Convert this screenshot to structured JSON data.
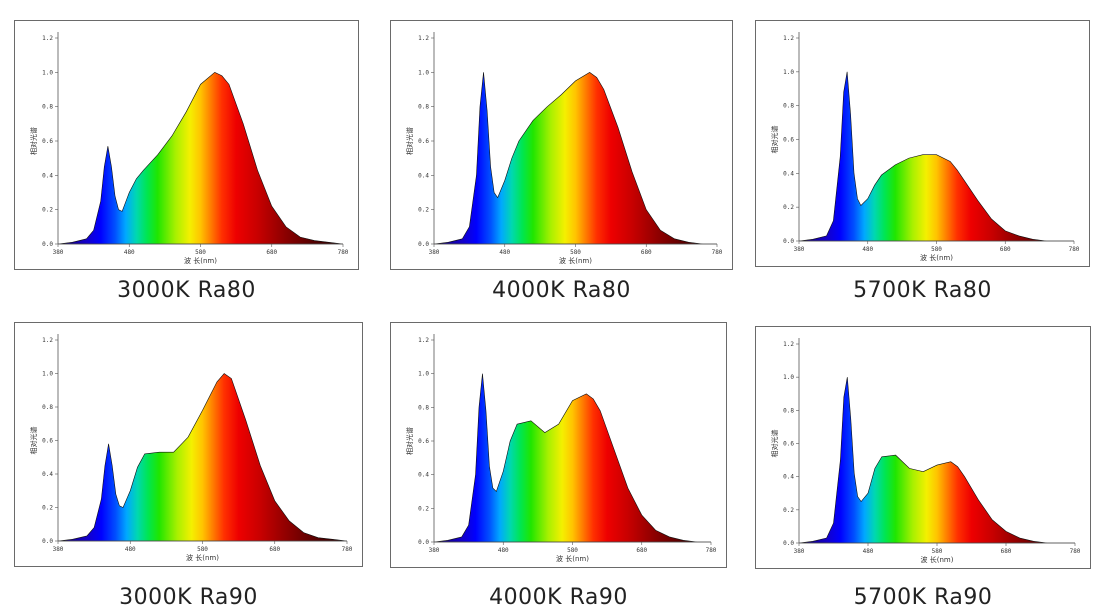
{
  "chart_data": [
    {
      "type": "area",
      "caption": "3000K Ra80",
      "xlabel": "波 长(nm)",
      "ylabel": "相对光谱",
      "xlim": [
        380,
        780
      ],
      "ylim": [
        0,
        1.2
      ],
      "xticks": [
        "380",
        "480",
        "580",
        "680",
        "780"
      ],
      "yticks": [
        "0.0",
        "0.2",
        "0.4",
        "0.6",
        "0.8",
        "1.0",
        "1.2"
      ],
      "x": [
        380,
        400,
        420,
        430,
        440,
        445,
        450,
        455,
        460,
        465,
        470,
        480,
        490,
        500,
        520,
        540,
        560,
        580,
        600,
        610,
        620,
        640,
        660,
        680,
        700,
        720,
        740,
        760,
        780
      ],
      "y": [
        0.0,
        0.01,
        0.03,
        0.08,
        0.25,
        0.45,
        0.57,
        0.45,
        0.28,
        0.2,
        0.19,
        0.3,
        0.38,
        0.43,
        0.52,
        0.63,
        0.77,
        0.93,
        1.0,
        0.98,
        0.93,
        0.7,
        0.43,
        0.22,
        0.1,
        0.04,
        0.02,
        0.01,
        0.0
      ]
    },
    {
      "type": "area",
      "caption": "4000K Ra80",
      "xlabel": "波 长(nm)",
      "ylabel": "相对光谱",
      "xlim": [
        380,
        780
      ],
      "ylim": [
        0,
        1.2
      ],
      "xticks": [
        "380",
        "480",
        "580",
        "680",
        "780"
      ],
      "yticks": [
        "0.0",
        "0.2",
        "0.4",
        "0.6",
        "0.8",
        "1.0",
        "1.2"
      ],
      "x": [
        380,
        400,
        420,
        430,
        440,
        445,
        450,
        455,
        460,
        465,
        470,
        480,
        490,
        500,
        520,
        540,
        560,
        580,
        600,
        610,
        620,
        640,
        660,
        680,
        700,
        720,
        740,
        760,
        780
      ],
      "y": [
        0.0,
        0.01,
        0.03,
        0.1,
        0.4,
        0.8,
        1.0,
        0.78,
        0.45,
        0.3,
        0.27,
        0.37,
        0.5,
        0.6,
        0.72,
        0.8,
        0.87,
        0.95,
        1.0,
        0.97,
        0.9,
        0.68,
        0.42,
        0.2,
        0.08,
        0.03,
        0.01,
        0.0,
        0.0
      ]
    },
    {
      "type": "area",
      "caption": "5700K Ra80",
      "xlabel": "波 长(nm)",
      "ylabel": "相对光谱",
      "xlim": [
        380,
        780
      ],
      "ylim": [
        0,
        1.2
      ],
      "xticks": [
        "380",
        "480",
        "580",
        "680",
        "780"
      ],
      "yticks": [
        "0.0",
        "0.2",
        "0.4",
        "0.6",
        "0.8",
        "1.0",
        "1.2"
      ],
      "x": [
        380,
        400,
        420,
        430,
        440,
        445,
        450,
        455,
        460,
        465,
        470,
        480,
        490,
        500,
        520,
        540,
        560,
        580,
        600,
        610,
        620,
        640,
        660,
        680,
        700,
        720,
        740,
        760,
        780
      ],
      "y": [
        0.0,
        0.01,
        0.03,
        0.12,
        0.5,
        0.88,
        1.0,
        0.75,
        0.4,
        0.25,
        0.21,
        0.25,
        0.33,
        0.39,
        0.45,
        0.49,
        0.51,
        0.51,
        0.47,
        0.42,
        0.36,
        0.24,
        0.13,
        0.06,
        0.03,
        0.01,
        0.0,
        0.0,
        0.0
      ]
    },
    {
      "type": "area",
      "caption": "3000K Ra90",
      "xlabel": "波 长(nm)",
      "ylabel": "相对光谱",
      "xlim": [
        380,
        780
      ],
      "ylim": [
        0,
        1.2
      ],
      "xticks": [
        "380",
        "480",
        "580",
        "680",
        "780"
      ],
      "yticks": [
        "0.0",
        "0.2",
        "0.4",
        "0.6",
        "0.8",
        "1.0",
        "1.2"
      ],
      "x": [
        380,
        400,
        420,
        430,
        440,
        445,
        450,
        455,
        460,
        465,
        470,
        480,
        490,
        500,
        520,
        540,
        560,
        580,
        600,
        610,
        620,
        640,
        660,
        680,
        700,
        720,
        740,
        760,
        780
      ],
      "y": [
        0.0,
        0.01,
        0.03,
        0.08,
        0.25,
        0.45,
        0.58,
        0.45,
        0.28,
        0.21,
        0.2,
        0.3,
        0.44,
        0.52,
        0.53,
        0.53,
        0.62,
        0.78,
        0.95,
        1.0,
        0.97,
        0.72,
        0.45,
        0.24,
        0.12,
        0.05,
        0.02,
        0.01,
        0.0
      ]
    },
    {
      "type": "area",
      "caption": "4000K Ra90",
      "xlabel": "波 长(nm)",
      "ylabel": "相对光谱",
      "xlim": [
        380,
        780
      ],
      "ylim": [
        0,
        1.2
      ],
      "xticks": [
        "380",
        "480",
        "580",
        "680",
        "780"
      ],
      "yticks": [
        "0.0",
        "0.2",
        "0.4",
        "0.6",
        "0.8",
        "1.0",
        "1.2"
      ],
      "x": [
        380,
        400,
        420,
        430,
        440,
        445,
        450,
        455,
        460,
        465,
        470,
        480,
        490,
        500,
        520,
        540,
        560,
        580,
        600,
        610,
        620,
        640,
        660,
        680,
        700,
        720,
        740,
        760,
        780
      ],
      "y": [
        0.0,
        0.01,
        0.03,
        0.1,
        0.4,
        0.8,
        1.0,
        0.78,
        0.45,
        0.32,
        0.3,
        0.42,
        0.6,
        0.7,
        0.72,
        0.65,
        0.7,
        0.84,
        0.88,
        0.85,
        0.78,
        0.55,
        0.32,
        0.16,
        0.07,
        0.03,
        0.01,
        0.0,
        0.0
      ]
    },
    {
      "type": "area",
      "caption": "5700K Ra90",
      "xlabel": "波 长(nm)",
      "ylabel": "相对光谱",
      "xlim": [
        380,
        780
      ],
      "ylim": [
        0,
        1.2
      ],
      "xticks": [
        "380",
        "480",
        "580",
        "680",
        "780"
      ],
      "yticks": [
        "0.0",
        "0.2",
        "0.4",
        "0.6",
        "0.8",
        "1.0",
        "1.2"
      ],
      "x": [
        380,
        400,
        420,
        430,
        440,
        445,
        450,
        455,
        460,
        465,
        470,
        480,
        490,
        500,
        520,
        540,
        560,
        580,
        600,
        610,
        620,
        640,
        660,
        680,
        700,
        720,
        740,
        760,
        780
      ],
      "y": [
        0.0,
        0.01,
        0.03,
        0.12,
        0.5,
        0.88,
        1.0,
        0.75,
        0.42,
        0.28,
        0.25,
        0.3,
        0.45,
        0.52,
        0.53,
        0.45,
        0.43,
        0.47,
        0.49,
        0.46,
        0.4,
        0.26,
        0.14,
        0.07,
        0.03,
        0.01,
        0.0,
        0.0,
        0.0
      ]
    }
  ]
}
